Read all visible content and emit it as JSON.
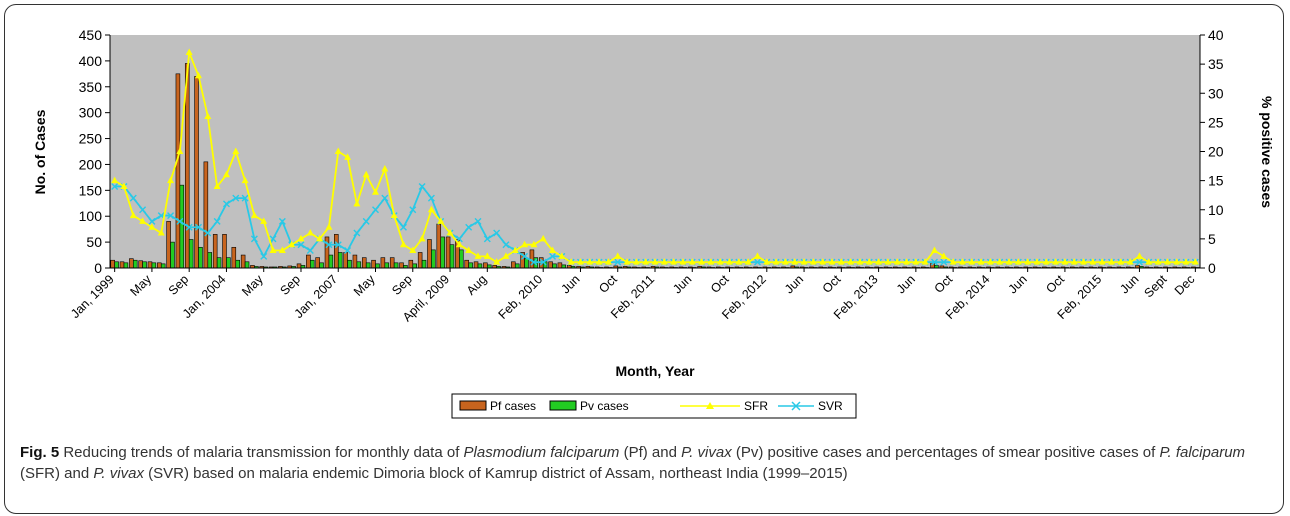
{
  "chart_data": {
    "type": "bar",
    "ylabel": "No. of Cases",
    "y2label": "% positive cases",
    "xlabel": "Month, Year",
    "ylim": [
      0,
      450
    ],
    "y2lim": [
      0,
      40
    ],
    "y_ticks": [
      0,
      50,
      100,
      150,
      200,
      250,
      300,
      350,
      400,
      450
    ],
    "y2_ticks": [
      0,
      5,
      10,
      15,
      20,
      25,
      30,
      35,
      40
    ],
    "grid": false,
    "plot_background": "#c0c0c0",
    "legend_position": "bottom",
    "x_tick_labels": [
      {
        "label": "Jan, 1999",
        "index": 0
      },
      {
        "label": "May",
        "index": 4
      },
      {
        "label": "Sep",
        "index": 8
      },
      {
        "label": "Jan, 2004",
        "index": 12
      },
      {
        "label": "May",
        "index": 16
      },
      {
        "label": "Sep",
        "index": 20
      },
      {
        "label": "Jan, 2007",
        "index": 24
      },
      {
        "label": "May",
        "index": 28
      },
      {
        "label": "Sep",
        "index": 32
      },
      {
        "label": "April, 2009",
        "index": 36
      },
      {
        "label": "Aug",
        "index": 40
      },
      {
        "label": "Feb, 2010",
        "index": 46
      },
      {
        "label": "Jun",
        "index": 50
      },
      {
        "label": "Oct",
        "index": 54
      },
      {
        "label": "Feb, 2011",
        "index": 58
      },
      {
        "label": "Jun",
        "index": 62
      },
      {
        "label": "Oct",
        "index": 66
      },
      {
        "label": "Feb, 2012",
        "index": 70
      },
      {
        "label": "Jun",
        "index": 74
      },
      {
        "label": "Oct",
        "index": 78
      },
      {
        "label": "Feb, 2013",
        "index": 82
      },
      {
        "label": "Jun",
        "index": 86
      },
      {
        "label": "Oct",
        "index": 90
      },
      {
        "label": "Feb, 2014",
        "index": 94
      },
      {
        "label": "Jun",
        "index": 98
      },
      {
        "label": "Oct",
        "index": 102
      },
      {
        "label": "Feb, 2015",
        "index": 106
      },
      {
        "label": "Jun",
        "index": 110
      },
      {
        "label": "Sept",
        "index": 113
      },
      {
        "label": "Dec",
        "index": 116
      }
    ],
    "series": [
      {
        "name": "Pf cases",
        "kind": "bar",
        "axis": "left",
        "color": "#c8641e",
        "values": [
          15,
          12,
          18,
          14,
          12,
          10,
          90,
          375,
          395,
          370,
          205,
          65,
          65,
          40,
          25,
          5,
          3,
          2,
          3,
          4,
          8,
          25,
          20,
          60,
          65,
          30,
          25,
          20,
          15,
          20,
          20,
          10,
          15,
          30,
          55,
          85,
          60,
          55,
          15,
          12,
          10,
          5,
          3,
          12,
          30,
          35,
          20,
          12,
          10,
          5,
          3,
          3,
          2,
          2,
          4,
          3,
          2,
          2,
          3,
          2,
          2,
          2,
          2,
          3,
          2,
          2,
          2,
          2,
          2,
          2,
          2,
          2,
          2,
          4,
          2,
          2,
          2,
          2,
          2,
          2,
          2,
          2,
          2,
          2,
          2,
          2,
          2,
          2,
          10,
          4,
          2,
          2,
          2,
          2,
          2,
          2,
          2,
          2,
          2,
          2,
          2,
          2,
          2,
          2,
          2,
          2,
          2,
          2,
          2,
          2,
          5,
          2,
          2,
          2,
          2,
          2,
          2
        ]
      },
      {
        "name": "Pv cases",
        "kind": "bar",
        "axis": "left",
        "color": "#22cc22",
        "values": [
          12,
          10,
          15,
          12,
          10,
          8,
          50,
          160,
          55,
          40,
          30,
          20,
          20,
          15,
          12,
          3,
          2,
          2,
          2,
          3,
          5,
          15,
          10,
          25,
          30,
          15,
          12,
          10,
          8,
          10,
          10,
          5,
          8,
          15,
          35,
          60,
          45,
          35,
          10,
          8,
          6,
          3,
          2,
          8,
          18,
          20,
          12,
          8,
          6,
          3,
          2,
          2,
          1,
          1,
          2,
          2,
          1,
          1,
          2,
          1,
          1,
          1,
          1,
          2,
          1,
          1,
          1,
          1,
          1,
          1,
          1,
          1,
          1,
          2,
          1,
          1,
          1,
          1,
          1,
          1,
          1,
          1,
          1,
          1,
          1,
          1,
          1,
          1,
          5,
          2,
          1,
          1,
          1,
          1,
          1,
          1,
          1,
          1,
          1,
          1,
          1,
          1,
          1,
          1,
          1,
          1,
          1,
          1,
          1,
          1,
          3,
          1,
          1,
          1,
          1,
          1,
          1
        ]
      },
      {
        "name": "SFR",
        "kind": "line",
        "axis": "right",
        "color": "#ffff00",
        "marker": "triangle",
        "values": [
          15,
          14,
          9,
          8,
          7,
          6,
          15,
          20,
          37,
          33,
          26,
          14,
          16,
          20,
          15,
          9,
          8,
          3,
          3,
          4,
          5,
          6,
          5,
          7,
          20,
          19,
          11,
          16,
          13,
          17,
          9,
          4,
          3,
          5,
          10,
          8,
          6,
          4,
          3,
          2,
          2,
          1,
          2,
          3,
          4,
          4,
          5,
          3,
          2,
          1,
          1,
          1,
          1,
          1,
          2,
          1,
          1,
          1,
          1,
          1,
          1,
          1,
          1,
          1,
          1,
          1,
          1,
          1,
          1,
          2,
          1,
          1,
          1,
          1,
          1,
          1,
          1,
          1,
          1,
          1,
          1,
          1,
          1,
          1,
          1,
          1,
          1,
          1,
          3,
          2,
          1,
          1,
          1,
          1,
          1,
          1,
          1,
          1,
          1,
          1,
          1,
          1,
          1,
          1,
          1,
          1,
          1,
          1,
          1,
          1,
          2,
          1,
          1,
          1,
          1,
          1,
          1
        ]
      },
      {
        "name": "SVR",
        "kind": "line",
        "axis": "right",
        "color": "#29c9e6",
        "marker": "cross",
        "values": [
          14,
          14,
          12,
          10,
          8,
          9,
          9,
          8,
          7,
          7,
          6,
          8,
          11,
          12,
          12,
          5,
          2,
          5,
          8,
          4,
          4,
          3,
          5,
          4,
          4,
          3,
          6,
          8,
          10,
          12,
          9,
          7,
          10,
          14,
          12,
          8,
          6,
          5,
          7,
          8,
          5,
          6,
          4,
          3,
          2,
          1,
          1,
          2,
          2,
          1,
          1,
          1,
          1,
          1,
          1,
          1,
          1,
          1,
          1,
          1,
          1,
          1,
          1,
          1,
          1,
          1,
          1,
          1,
          1,
          1,
          1,
          1,
          1,
          1,
          1,
          1,
          1,
          1,
          1,
          1,
          1,
          1,
          1,
          1,
          1,
          1,
          1,
          1,
          1,
          1,
          1,
          1,
          1,
          1,
          1,
          1,
          1,
          1,
          1,
          1,
          1,
          1,
          1,
          1,
          1,
          1,
          1,
          1,
          1,
          1,
          1,
          1,
          1,
          1,
          1,
          1,
          1
        ]
      }
    ]
  },
  "caption": {
    "label": "Fig. 5",
    "text_1": " Reducing trends of malaria transmission for monthly data of ",
    "italic_1": "Plasmodium falciparum",
    "text_2": " (Pf) and ",
    "italic_2": "P. vivax",
    "text_3": " (Pv) positive cases and percentages of smear positive cases of ",
    "italic_3": "P. falciparum",
    "text_4": " (SFR) and ",
    "italic_4": "P. vivax",
    "text_5": " (SVR) based on malaria endemic Dimoria block of Kamrup district of Assam, northeast India (1999–2015)"
  }
}
